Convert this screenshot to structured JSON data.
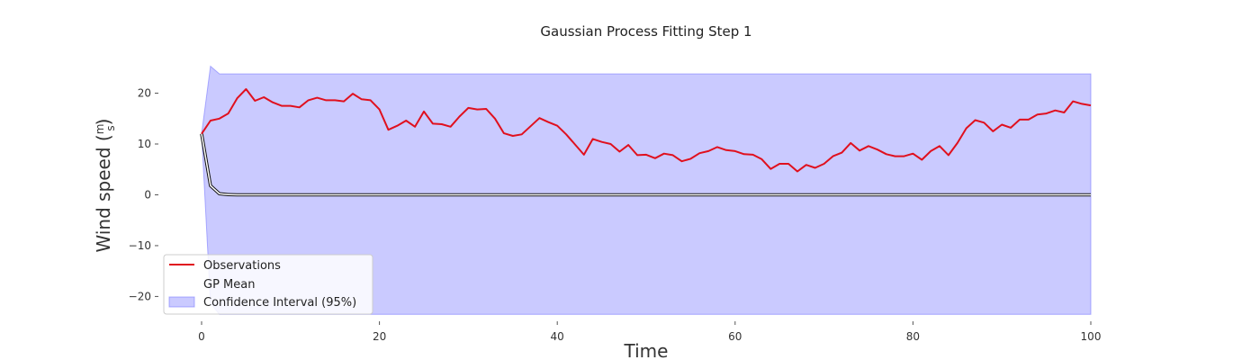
{
  "chart_data": {
    "type": "line",
    "title": "Gaussian Process Fitting Step 1",
    "xlabel": "Time",
    "ylabel": "Wind speed (m/s)",
    "ylabel_parts": {
      "prefix": "Wind speed (",
      "num": "m",
      "den": "s",
      "suffix": ")"
    },
    "xlim": [
      0,
      100
    ],
    "ylim": [
      -24,
      27
    ],
    "xticks": [
      0,
      20,
      40,
      60,
      80,
      100
    ],
    "yticks": [
      -20,
      -10,
      0,
      10,
      20
    ],
    "grid": false,
    "legend_position": "lower-left",
    "x": [
      0,
      1,
      2,
      3,
      4,
      5,
      6,
      7,
      8,
      9,
      10,
      11,
      12,
      13,
      14,
      15,
      16,
      17,
      18,
      19,
      20,
      21,
      22,
      23,
      24,
      25,
      26,
      27,
      28,
      29,
      30,
      31,
      32,
      33,
      34,
      35,
      36,
      37,
      38,
      39,
      40,
      41,
      42,
      43,
      44,
      45,
      46,
      47,
      48,
      49,
      50,
      51,
      52,
      53,
      54,
      55,
      56,
      57,
      58,
      59,
      60,
      61,
      62,
      63,
      64,
      65,
      66,
      67,
      68,
      69,
      70,
      71,
      72,
      73,
      74,
      75,
      76,
      77,
      78,
      79,
      80,
      81,
      82,
      83,
      84,
      85,
      86,
      87,
      88,
      89,
      90,
      91,
      92,
      93,
      94,
      95,
      96,
      97,
      98,
      99,
      100
    ],
    "series": [
      {
        "name": "Observations",
        "color": "#e0101e",
        "values": [
          12.0,
          14.6,
          15.0,
          16.0,
          19.0,
          20.8,
          18.5,
          19.2,
          18.2,
          17.5,
          17.5,
          17.2,
          18.6,
          19.1,
          18.6,
          18.6,
          18.4,
          19.9,
          18.8,
          18.6,
          16.8,
          12.8,
          13.6,
          14.6,
          13.4,
          16.4,
          14.0,
          13.9,
          13.4,
          15.4,
          17.1,
          16.8,
          16.9,
          15.0,
          12.1,
          11.6,
          11.9,
          13.5,
          15.1,
          14.3,
          13.6,
          11.9,
          9.9,
          7.9,
          11.0,
          10.4,
          10.0,
          8.5,
          9.8,
          7.8,
          7.9,
          7.2,
          8.1,
          7.8,
          6.6,
          7.1,
          8.2,
          8.6,
          9.4,
          8.8,
          8.6,
          8.0,
          7.9,
          7.0,
          5.1,
          6.1,
          6.1,
          4.6,
          5.9,
          5.3,
          6.1,
          7.6,
          8.3,
          10.2,
          8.7,
          9.6,
          8.9,
          8.0,
          7.6,
          7.6,
          8.1,
          6.9,
          8.6,
          9.6,
          7.8,
          10.2,
          13.1,
          14.7,
          14.2,
          12.5,
          13.8,
          13.2,
          14.8,
          14.8,
          15.8,
          16.0,
          16.6,
          16.2,
          18.4,
          17.9,
          17.6
        ]
      },
      {
        "name": "GP Mean",
        "color": "#ffffff",
        "outline": "#111111",
        "values": [
          12.0,
          1.8,
          0.2,
          0.05,
          0.0,
          0.0,
          0.0,
          0.0,
          0.0,
          0.0,
          0.0,
          0.0,
          0.0,
          0.0,
          0.0,
          0.0,
          0.0,
          0.0,
          0.0,
          0.0,
          0.0,
          0.0,
          0.0,
          0.0,
          0.0,
          0.0,
          0.0,
          0.0,
          0.0,
          0.0,
          0.0,
          0.0,
          0.0,
          0.0,
          0.0,
          0.0,
          0.0,
          0.0,
          0.0,
          0.0,
          0.0,
          0.0,
          0.0,
          0.0,
          0.0,
          0.0,
          0.0,
          0.0,
          0.0,
          0.0,
          0.0,
          0.0,
          0.0,
          0.0,
          0.0,
          0.0,
          0.0,
          0.0,
          0.0,
          0.0,
          0.0,
          0.0,
          0.0,
          0.0,
          0.0,
          0.0,
          0.0,
          0.0,
          0.0,
          0.0,
          0.0,
          0.0,
          0.0,
          0.0,
          0.0,
          0.0,
          0.0,
          0.0,
          0.0,
          0.0,
          0.0,
          0.0,
          0.0,
          0.0,
          0.0,
          0.0,
          0.0,
          0.0,
          0.0,
          0.0,
          0.0,
          0.0,
          0.0,
          0.0,
          0.0,
          0.0,
          0.0,
          0.0,
          0.0,
          0.0,
          0.0
        ]
      }
    ],
    "confidence_interval": {
      "name": "Confidence Interval (95%)",
      "color": "#7b7bff",
      "opacity": 0.4,
      "x": [
        0,
        1,
        2,
        100
      ],
      "upper": [
        12.0,
        25.3,
        23.8,
        23.8
      ],
      "lower": [
        12.0,
        -21.3,
        -23.5,
        -23.5
      ]
    }
  }
}
